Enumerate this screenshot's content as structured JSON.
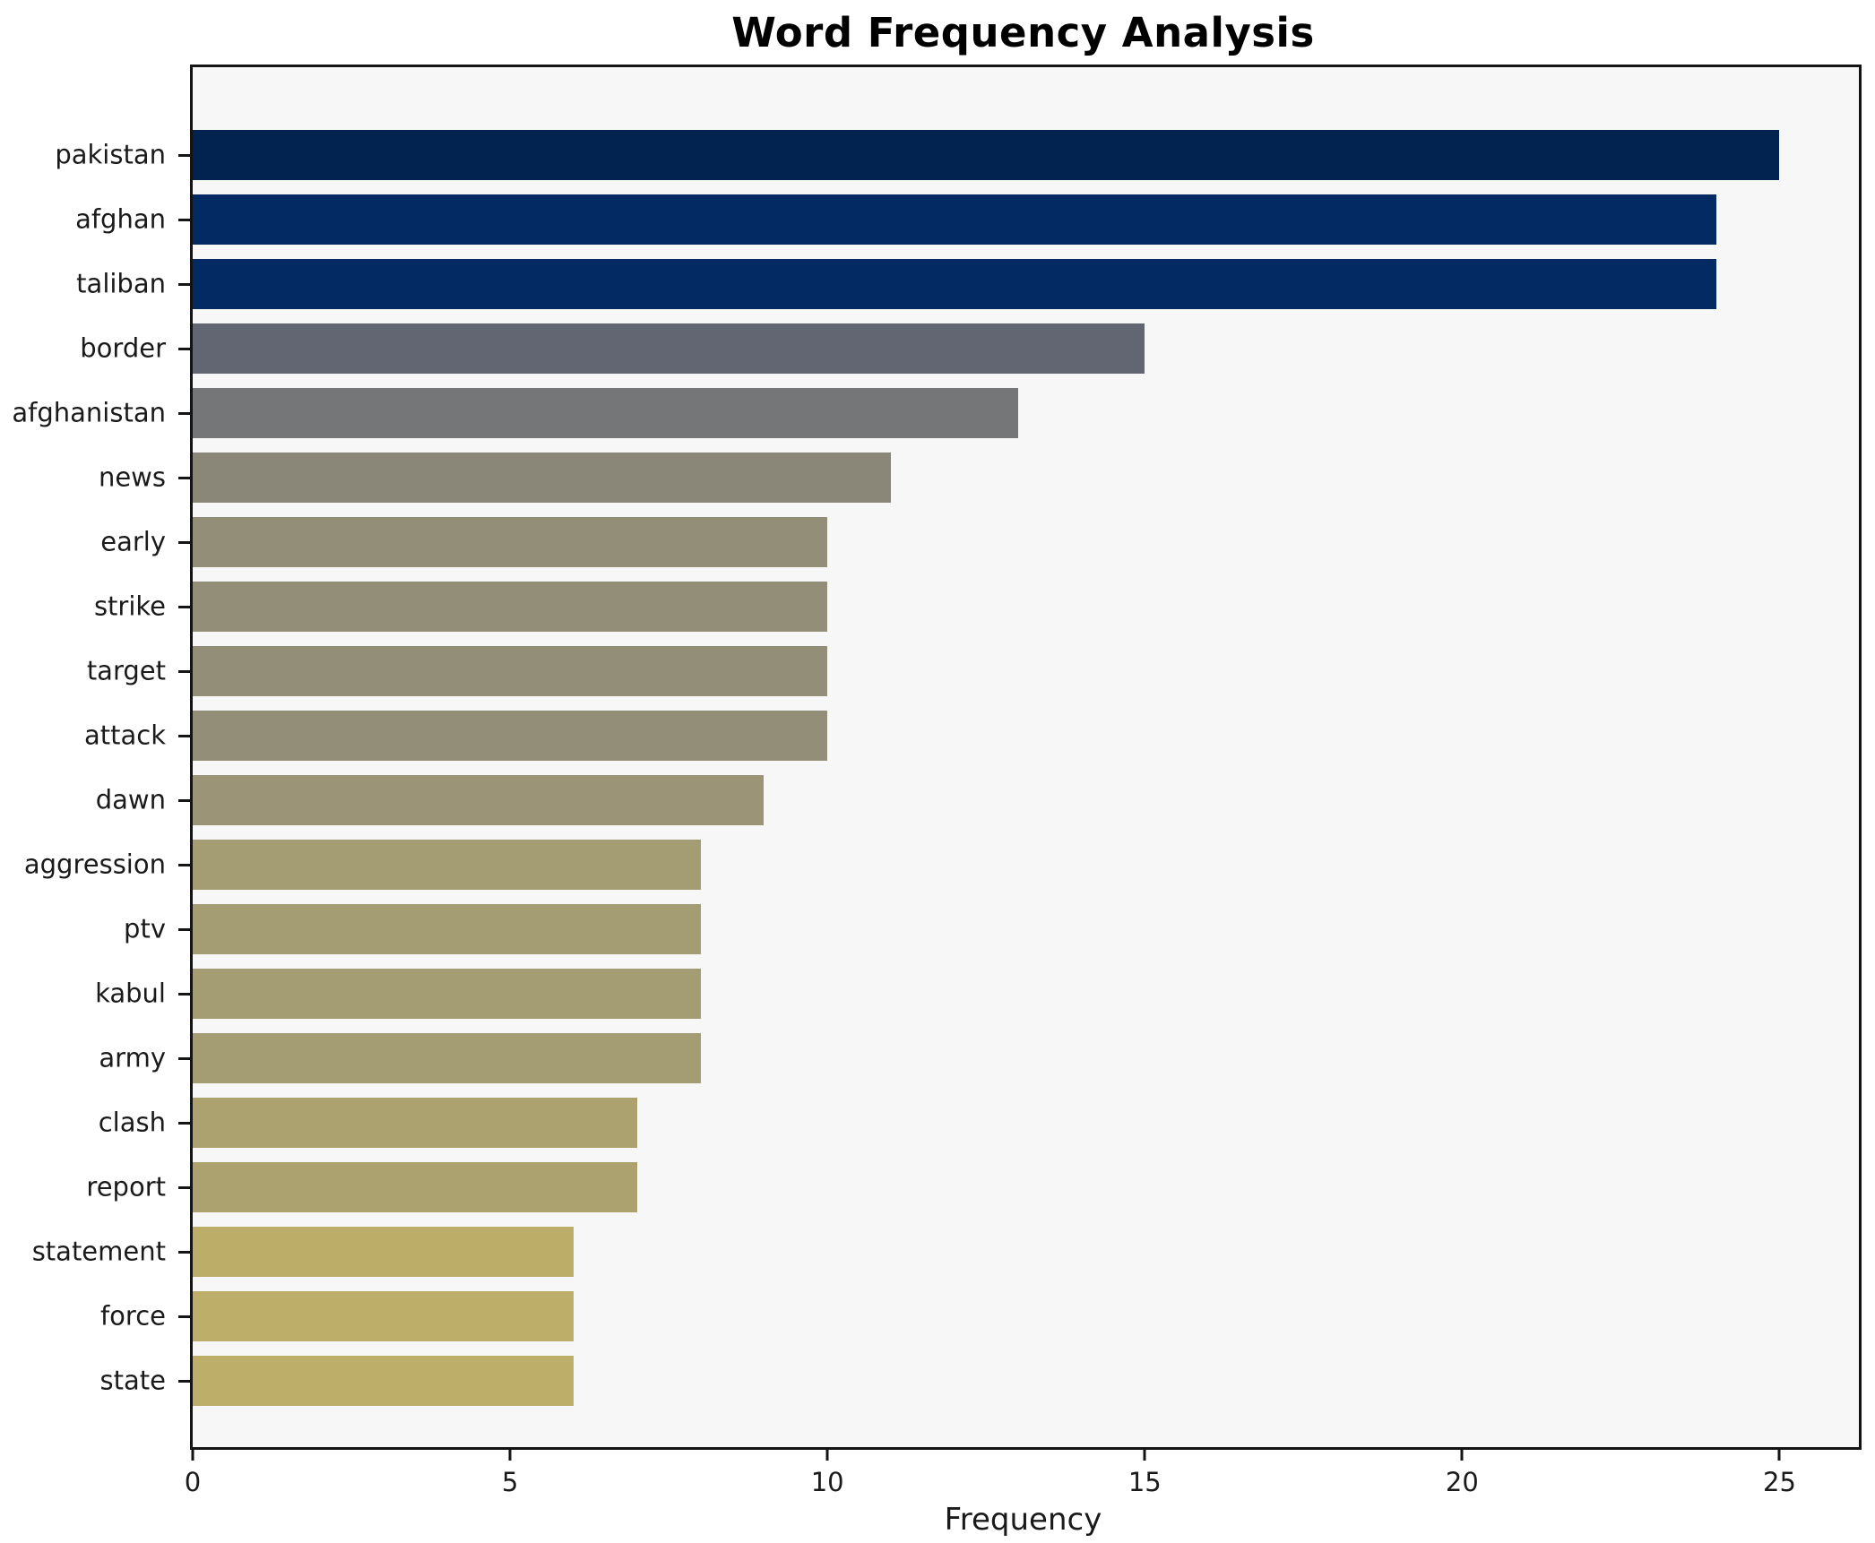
{
  "chart_data": {
    "type": "bar",
    "orientation": "horizontal",
    "title": "Word Frequency Analysis",
    "xlabel": "Frequency",
    "ylabel": "",
    "categories": [
      "pakistan",
      "afghan",
      "taliban",
      "border",
      "afghanistan",
      "news",
      "early",
      "strike",
      "target",
      "attack",
      "dawn",
      "aggression",
      "ptv",
      "kabul",
      "army",
      "clash",
      "report",
      "statement",
      "force",
      "state"
    ],
    "values": [
      25,
      24,
      24,
      15,
      13,
      11,
      10,
      10,
      10,
      10,
      9,
      8,
      8,
      8,
      8,
      7,
      7,
      6,
      6,
      6
    ],
    "bar_colors": [
      "#02234f",
      "#032a63",
      "#032a63",
      "#616672",
      "#757678",
      "#8a8678",
      "#928e77",
      "#928e77",
      "#938e77",
      "#938e77",
      "#9b9476",
      "#a49c72",
      "#a49c72",
      "#a49c72",
      "#a49c72",
      "#aca26f",
      "#aca26f",
      "#bcae68",
      "#bdaf69",
      "#bdaf69"
    ],
    "xlim": [
      0,
      26.25
    ],
    "xticks": [
      0,
      5,
      10,
      15,
      20,
      25
    ],
    "grid": false,
    "legend_position": "none",
    "plot_background": "#f7f7f8",
    "figure_background": "#ffffff",
    "spine_color": "#141414",
    "colormap": "cividis"
  }
}
